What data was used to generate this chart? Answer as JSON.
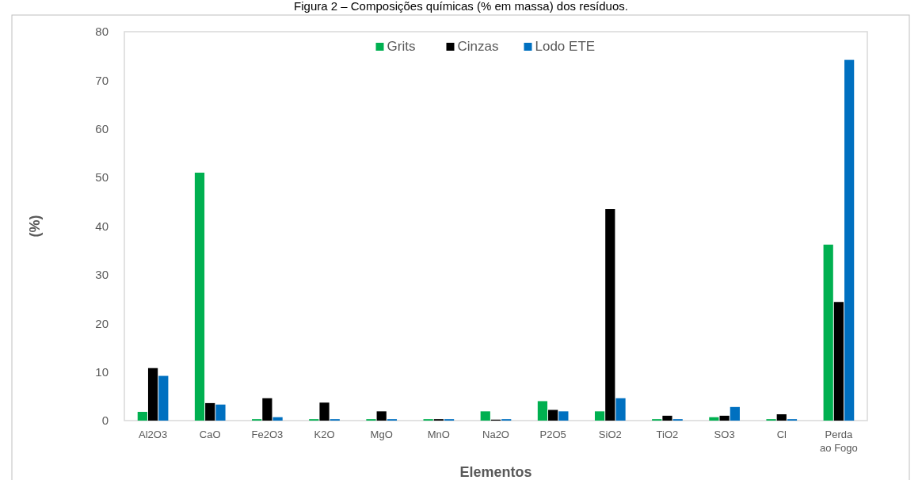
{
  "chart_data": {
    "type": "bar",
    "title": "Figura 2 – Composições químicas (% em massa) dos resíduos.",
    "xlabel": "Elementos",
    "ylabel": "(%)",
    "categories": [
      "Al2O3",
      "CaO",
      "Fe2O3",
      "K2O",
      "MgO",
      "MnO",
      "Na2O",
      "P2O5",
      "SiO2",
      "TiO2",
      "SO3",
      "Cl",
      "Perda\nao Fogo"
    ],
    "series": [
      {
        "name": "Grits",
        "color": "#00b050",
        "values": [
          1.8,
          51,
          0.3,
          0.3,
          0.3,
          0.3,
          1.9,
          4.0,
          1.9,
          0.3,
          0.7,
          0.3,
          36.2
        ]
      },
      {
        "name": "Cinzas",
        "color": "#000000",
        "values": [
          10.8,
          3.6,
          4.6,
          3.7,
          1.9,
          0.3,
          0.2,
          2.2,
          43.5,
          1.0,
          1.0,
          1.3,
          24.4
        ]
      },
      {
        "name": "Lodo ETE",
        "color": "#0070c0",
        "values": [
          9.2,
          3.3,
          0.7,
          0.3,
          0.3,
          0.3,
          0.3,
          1.9,
          4.6,
          0.3,
          2.8,
          0.3,
          74.2
        ]
      }
    ],
    "ylim": [
      0,
      80
    ],
    "yticks": [
      0,
      10,
      20,
      30,
      40,
      50,
      60,
      70,
      80
    ],
    "grid": false,
    "legend": "top"
  }
}
